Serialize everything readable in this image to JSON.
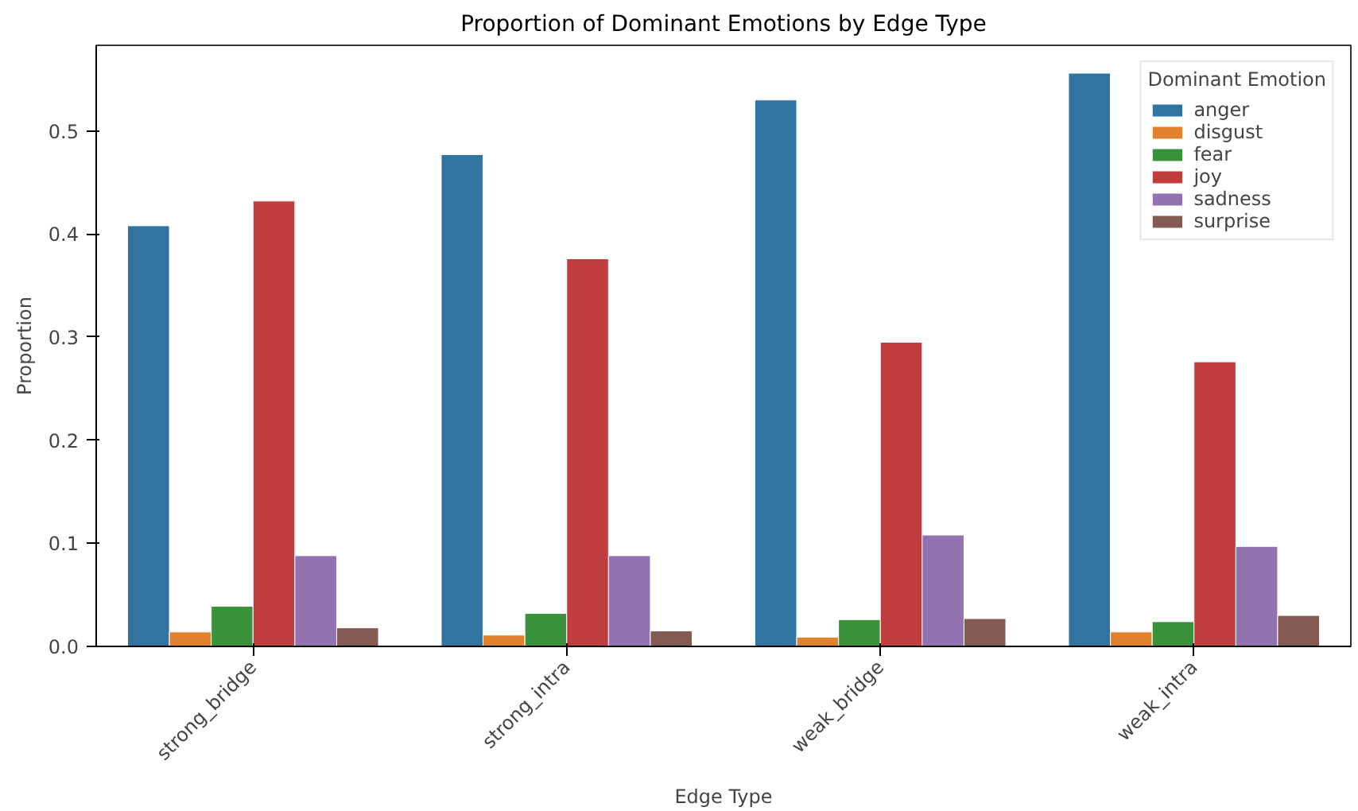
{
  "chart_data": {
    "type": "bar",
    "title": "Proportion of Dominant Emotions by Edge Type",
    "xlabel": "Edge Type",
    "ylabel": "Proportion",
    "legend_title": "Dominant Emotion",
    "categories": [
      "strong_bridge",
      "strong_intra",
      "weak_bridge",
      "weak_intra"
    ],
    "series": [
      {
        "name": "anger",
        "color": "#3274a1",
        "values": [
          0.408,
          0.477,
          0.53,
          0.556
        ]
      },
      {
        "name": "disgust",
        "color": "#e1812c",
        "values": [
          0.014,
          0.011,
          0.009,
          0.014
        ]
      },
      {
        "name": "fear",
        "color": "#3a923a",
        "values": [
          0.039,
          0.032,
          0.026,
          0.024
        ]
      },
      {
        "name": "joy",
        "color": "#c03d3e",
        "values": [
          0.432,
          0.376,
          0.295,
          0.276
        ]
      },
      {
        "name": "sadness",
        "color": "#9372b2",
        "values": [
          0.088,
          0.088,
          0.108,
          0.097
        ]
      },
      {
        "name": "surprise",
        "color": "#845b53",
        "values": [
          0.018,
          0.015,
          0.027,
          0.03
        ]
      }
    ],
    "ylim": [
      0,
      0.583
    ],
    "yticks": [
      {
        "value": 0,
        "label": "0.0"
      },
      0.1,
      0.2,
      0.3,
      0.4,
      0.5
    ],
    "grid": false,
    "legend": "top right"
  }
}
